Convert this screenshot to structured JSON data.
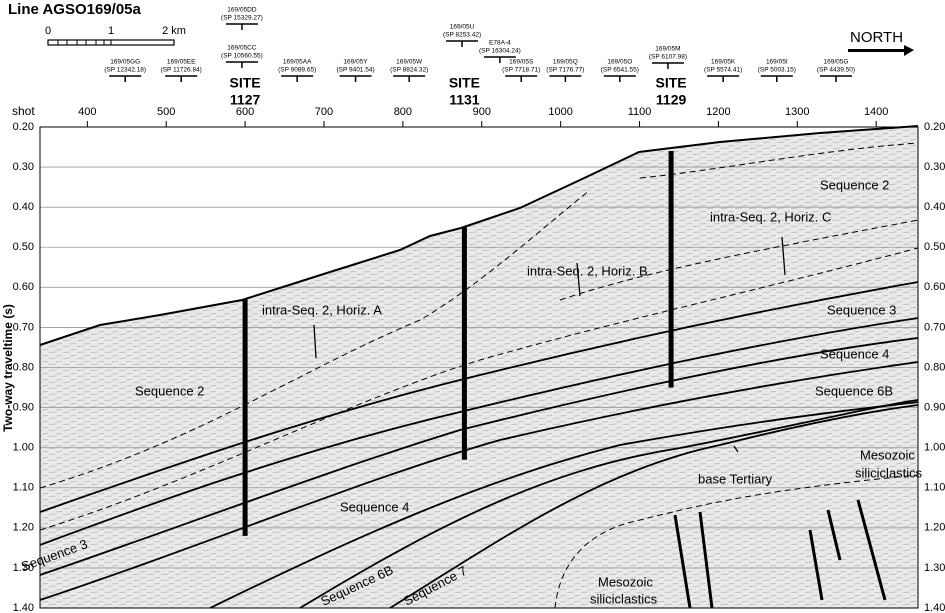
{
  "chart_data": {
    "type": "profile",
    "title": "Line AGSO169/05a",
    "xlabel": "shot",
    "ylabel": "Two-way traveltime (s)",
    "xlim": [
      340,
      1453
    ],
    "ylim": [
      1.4,
      0.2
    ],
    "xticks": [
      400,
      500,
      600,
      700,
      800,
      900,
      1000,
      1100,
      1200,
      1300,
      1400
    ],
    "yticks": [
      {
        "value": 0.2,
        "label": "0.20"
      },
      {
        "value": 0.3,
        "label": "0.30"
      },
      {
        "value": 0.4,
        "label": "0.40"
      },
      {
        "value": 0.5,
        "label": "0.50"
      },
      {
        "value": 0.6,
        "label": "0.60"
      },
      {
        "value": 0.7,
        "label": "0.70"
      },
      {
        "value": 0.8,
        "label": "0.80"
      },
      {
        "value": 0.9,
        "label": "0.90"
      },
      {
        "value": 1.0,
        "label": "1.00"
      },
      {
        "value": 1.1,
        "label": "1.10"
      },
      {
        "value": 1.2,
        "label": "1.20"
      },
      {
        "value": 1.3,
        "label": "1.30"
      },
      {
        "value": 1.4,
        "label": "1.40"
      }
    ],
    "grid": true,
    "scale_bar": {
      "labels": [
        "0",
        "1",
        "2 km"
      ]
    },
    "direction": "NORTH",
    "crossings": [
      {
        "name": "169/05GG",
        "sp": "(SP 12342.18)",
        "shot": 448
      },
      {
        "name": "169/05EE",
        "sp": "(SP 11726.84)",
        "shot": 519
      },
      {
        "name": "169/05DD",
        "sp": "(SP 15329.27)",
        "shot": 596
      },
      {
        "name": "169/05CC",
        "sp": "(SP 10560.55)",
        "shot": 596
      },
      {
        "name": "169/05AA",
        "sp": "(SP 9089.65)",
        "shot": 666
      },
      {
        "name": "169/05Y",
        "sp": "(SP 9401.54)",
        "shot": 740
      },
      {
        "name": "169/05W",
        "sp": "(SP 8824.32)",
        "shot": 808
      },
      {
        "name": "169/05U",
        "sp": "(SP 8253.42)",
        "shot": 875
      },
      {
        "name": "E78A-4",
        "sp": "(SP 16304.24)",
        "shot": 923
      },
      {
        "name": "169/05S",
        "sp": "(SP 7718.71)",
        "shot": 950
      },
      {
        "name": "169/05Q",
        "sp": "(SP 7176.77)",
        "shot": 1006
      },
      {
        "name": "169/05O",
        "sp": "(SP 6541.55)",
        "shot": 1075
      },
      {
        "name": "169/05M",
        "sp": "(SP 6107.98)",
        "shot": 1136
      },
      {
        "name": "169/05K",
        "sp": "(SP 5574.41)",
        "shot": 1206
      },
      {
        "name": "169/05I",
        "sp": "(SP 5003.15)",
        "shot": 1274
      },
      {
        "name": "169/05G",
        "sp": "(SP 4439.50)",
        "shot": 1349
      }
    ],
    "sites": [
      {
        "label": "SITE",
        "number": "1127",
        "shot": 600,
        "top": 0.63,
        "bottom": 1.22
      },
      {
        "label": "SITE",
        "number": "1131",
        "shot": 878,
        "top": 0.45,
        "bottom": 1.03
      },
      {
        "label": "SITE",
        "number": "1129",
        "shot": 1140,
        "top": 0.26,
        "bottom": 0.85
      }
    ],
    "annotations": [
      "Sequence 2",
      "intra-Seq. 2, Horiz. A",
      "intra-Seq. 2, Horiz. B",
      "intra-Seq. 2, Horiz. C",
      "Sequence 2",
      "Sequence 3",
      "Sequence 4",
      "Sequence 6B",
      "Mesozoic",
      "siliciclastics",
      "base Tertiary",
      "Sequence 4",
      "Sequence 3",
      "Sequence 6B",
      "Sequence 7",
      "Mesozoic",
      "siliciclastics"
    ]
  }
}
